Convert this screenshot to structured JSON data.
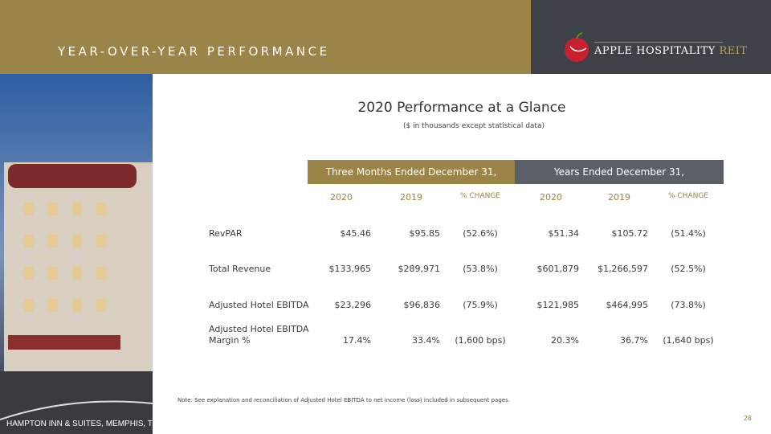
{
  "header": {
    "title": "YEAR-OVER-YEAR PERFORMANCE",
    "logo": {
      "name": "APPLE HOSPITALITY",
      "suffix": "REIT"
    }
  },
  "photo": {
    "caption": "HAMPTON INN & SUITES, MEMPHIS, TN"
  },
  "content": {
    "title": "2020 Performance at a Glance",
    "subtitle": "($ in thousands except statistical data)"
  },
  "table": {
    "groups": [
      "Three Months Ended December 31,",
      "Years Ended December 31,"
    ],
    "columns": [
      "2020",
      "2019",
      "% CHANGE",
      "2020",
      "2019",
      "% CHANGE"
    ],
    "rows": [
      {
        "label": [
          "RevPAR"
        ],
        "cells": [
          "$45.46",
          "$95.85",
          "(52.6%)",
          "$51.34",
          "$105.72",
          "(51.4%)"
        ]
      },
      {
        "label": [
          "Total Revenue"
        ],
        "cells": [
          "$133,965",
          "$289,971",
          "(53.8%)",
          "$601,879",
          "$1,266,597",
          "(52.5%)"
        ]
      },
      {
        "label": [
          "Adjusted Hotel EBITDA"
        ],
        "cells": [
          "$23,296",
          "$96,836",
          "(75.9%)",
          "$121,985",
          "$464,995",
          "(73.8%)"
        ]
      },
      {
        "label": [
          "Adjusted Hotel EBITDA",
          "Margin %"
        ],
        "cells": [
          "17.4%",
          "33.4%",
          "(1,600 bps)",
          "20.3%",
          "36.7%",
          "(1,640 bps)"
        ]
      }
    ]
  },
  "footer": {
    "note": "Note: See explanation and reconciliation of Adjusted Hotel EBITDA to net income (loss) included in subsequent pages.",
    "page": "28"
  }
}
